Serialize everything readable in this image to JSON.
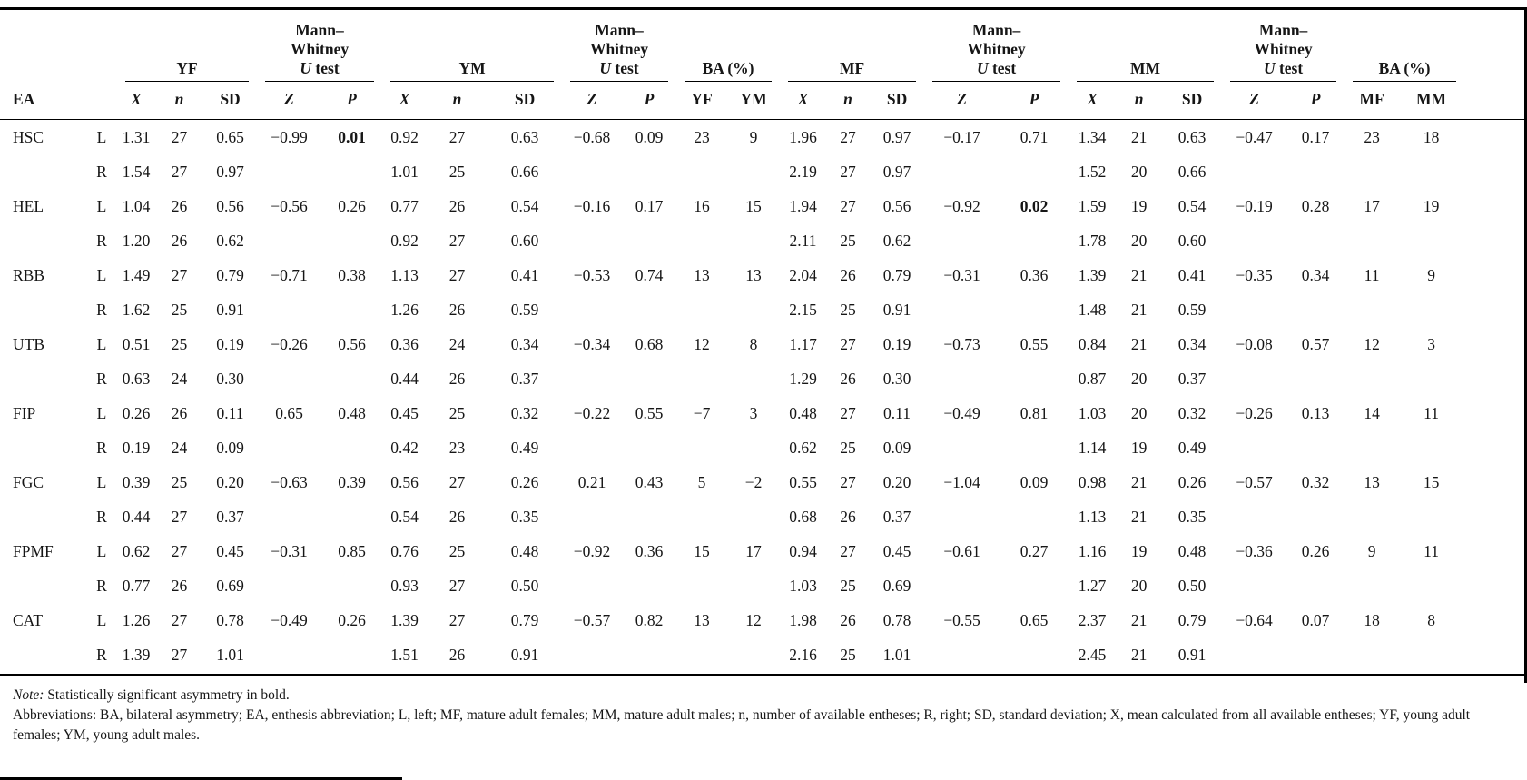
{
  "table": {
    "groups": [
      {
        "name": "spacer",
        "span": 2,
        "rule": false,
        "parts": []
      },
      {
        "name": "yf",
        "span": 3,
        "rule": true,
        "parts": [
          {
            "t": "YF"
          }
        ]
      },
      {
        "name": "mw-young",
        "span": 2,
        "rule": true,
        "parts": [
          {
            "t": "Mann–",
            "br": true
          },
          {
            "t": "Whitney",
            "br": true
          },
          {
            "t": "U",
            "i": true
          },
          {
            "t": " test"
          }
        ]
      },
      {
        "name": "ym",
        "span": 3,
        "rule": true,
        "parts": [
          {
            "t": "YM"
          }
        ]
      },
      {
        "name": "mw-young-2",
        "span": 2,
        "rule": true,
        "parts": [
          {
            "t": "Mann–",
            "br": true
          },
          {
            "t": "Whitney",
            "br": true
          },
          {
            "t": "U",
            "i": true
          },
          {
            "t": " test"
          }
        ]
      },
      {
        "name": "ba-young",
        "span": 2,
        "rule": true,
        "parts": [
          {
            "t": "BA (%)"
          }
        ]
      },
      {
        "name": "mf",
        "span": 3,
        "rule": true,
        "parts": [
          {
            "t": "MF"
          }
        ]
      },
      {
        "name": "mw-mature",
        "span": 2,
        "rule": true,
        "parts": [
          {
            "t": "Mann–",
            "br": true
          },
          {
            "t": "Whitney",
            "br": true
          },
          {
            "t": "U",
            "i": true
          },
          {
            "t": " test"
          }
        ]
      },
      {
        "name": "mm",
        "span": 3,
        "rule": true,
        "parts": [
          {
            "t": "MM"
          }
        ]
      },
      {
        "name": "mw-mature-2",
        "span": 2,
        "rule": true,
        "parts": [
          {
            "t": "Mann–",
            "br": true
          },
          {
            "t": "Whitney",
            "br": true
          },
          {
            "t": "U",
            "i": true
          },
          {
            "t": " test"
          }
        ]
      },
      {
        "name": "ba-mature",
        "span": 2,
        "rule": true,
        "parts": [
          {
            "t": "BA (%)"
          }
        ]
      }
    ],
    "subheaders": [
      {
        "t": "EA",
        "align": "left"
      },
      {
        "t": ""
      },
      {
        "t": "X",
        "i": true
      },
      {
        "t": "n",
        "i": true
      },
      {
        "t": "SD"
      },
      {
        "t": "Z",
        "i": true
      },
      {
        "t": "P",
        "i": true
      },
      {
        "t": "X",
        "i": true
      },
      {
        "t": "n",
        "i": true
      },
      {
        "t": "SD"
      },
      {
        "t": "Z",
        "i": true
      },
      {
        "t": "P",
        "i": true
      },
      {
        "t": "YF"
      },
      {
        "t": "YM"
      },
      {
        "t": "X",
        "i": true
      },
      {
        "t": "n",
        "i": true
      },
      {
        "t": "SD"
      },
      {
        "t": "Z",
        "i": true
      },
      {
        "t": "P",
        "i": true
      },
      {
        "t": "X",
        "i": true
      },
      {
        "t": "n",
        "i": true
      },
      {
        "t": "SD"
      },
      {
        "t": "Z",
        "i": true
      },
      {
        "t": "P",
        "i": true
      },
      {
        "t": "MF"
      },
      {
        "t": "MM"
      }
    ],
    "rows": [
      {
        "ea": "HSC",
        "side": "L",
        "cells": [
          "1.31",
          "27",
          "0.65",
          "−0.99",
          "0.01",
          "0.92",
          "27",
          "0.63",
          "−0.68",
          "0.09",
          "23",
          "9",
          "1.96",
          "27",
          "0.97",
          "−0.17",
          "0.71",
          "1.34",
          "21",
          "0.63",
          "−0.47",
          "0.17",
          "23",
          "18"
        ],
        "bold": [
          4
        ]
      },
      {
        "ea": "",
        "side": "R",
        "cells": [
          "1.54",
          "27",
          "0.97",
          "",
          "",
          "1.01",
          "25",
          "0.66",
          "",
          "",
          "",
          "",
          "2.19",
          "27",
          "0.97",
          "",
          "",
          "1.52",
          "20",
          "0.66",
          "",
          "",
          "",
          ""
        ],
        "bold": []
      },
      {
        "ea": "HEL",
        "side": "L",
        "cells": [
          "1.04",
          "26",
          "0.56",
          "−0.56",
          "0.26",
          "0.77",
          "26",
          "0.54",
          "−0.16",
          "0.17",
          "16",
          "15",
          "1.94",
          "27",
          "0.56",
          "−0.92",
          "0.02",
          "1.59",
          "19",
          "0.54",
          "−0.19",
          "0.28",
          "17",
          "19"
        ],
        "bold": [
          16
        ]
      },
      {
        "ea": "",
        "side": "R",
        "cells": [
          "1.20",
          "26",
          "0.62",
          "",
          "",
          "0.92",
          "27",
          "0.60",
          "",
          "",
          "",
          "",
          "2.11",
          "25",
          "0.62",
          "",
          "",
          "1.78",
          "20",
          "0.60",
          "",
          "",
          "",
          ""
        ],
        "bold": []
      },
      {
        "ea": "RBB",
        "side": "L",
        "cells": [
          "1.49",
          "27",
          "0.79",
          "−0.71",
          "0.38",
          "1.13",
          "27",
          "0.41",
          "−0.53",
          "0.74",
          "13",
          "13",
          "2.04",
          "26",
          "0.79",
          "−0.31",
          "0.36",
          "1.39",
          "21",
          "0.41",
          "−0.35",
          "0.34",
          "11",
          "9"
        ],
        "bold": []
      },
      {
        "ea": "",
        "side": "R",
        "cells": [
          "1.62",
          "25",
          "0.91",
          "",
          "",
          "1.26",
          "26",
          "0.59",
          "",
          "",
          "",
          "",
          "2.15",
          "25",
          "0.91",
          "",
          "",
          "1.48",
          "21",
          "0.59",
          "",
          "",
          "",
          ""
        ],
        "bold": []
      },
      {
        "ea": "UTB",
        "side": "L",
        "cells": [
          "0.51",
          "25",
          "0.19",
          "−0.26",
          "0.56",
          "0.36",
          "24",
          "0.34",
          "−0.34",
          "0.68",
          "12",
          "8",
          "1.17",
          "27",
          "0.19",
          "−0.73",
          "0.55",
          "0.84",
          "21",
          "0.34",
          "−0.08",
          "0.57",
          "12",
          "3"
        ],
        "bold": []
      },
      {
        "ea": "",
        "side": "R",
        "cells": [
          "0.63",
          "24",
          "0.30",
          "",
          "",
          "0.44",
          "26",
          "0.37",
          "",
          "",
          "",
          "",
          "1.29",
          "26",
          "0.30",
          "",
          "",
          "0.87",
          "20",
          "0.37",
          "",
          "",
          "",
          ""
        ],
        "bold": []
      },
      {
        "ea": "FIP",
        "side": "L",
        "cells": [
          "0.26",
          "26",
          "0.11",
          "0.65",
          "0.48",
          "0.45",
          "25",
          "0.32",
          "−0.22",
          "0.55",
          "−7",
          "3",
          "0.48",
          "27",
          "0.11",
          "−0.49",
          "0.81",
          "1.03",
          "20",
          "0.32",
          "−0.26",
          "0.13",
          "14",
          "11"
        ],
        "bold": []
      },
      {
        "ea": "",
        "side": "R",
        "cells": [
          "0.19",
          "24",
          "0.09",
          "",
          "",
          "0.42",
          "23",
          "0.49",
          "",
          "",
          "",
          "",
          "0.62",
          "25",
          "0.09",
          "",
          "",
          "1.14",
          "19",
          "0.49",
          "",
          "",
          "",
          ""
        ],
        "bold": []
      },
      {
        "ea": "FGC",
        "side": "L",
        "cells": [
          "0.39",
          "25",
          "0.20",
          "−0.63",
          "0.39",
          "0.56",
          "27",
          "0.26",
          "0.21",
          "0.43",
          "5",
          "−2",
          "0.55",
          "27",
          "0.20",
          "−1.04",
          "0.09",
          "0.98",
          "21",
          "0.26",
          "−0.57",
          "0.32",
          "13",
          "15"
        ],
        "bold": []
      },
      {
        "ea": "",
        "side": "R",
        "cells": [
          "0.44",
          "27",
          "0.37",
          "",
          "",
          "0.54",
          "26",
          "0.35",
          "",
          "",
          "",
          "",
          "0.68",
          "26",
          "0.37",
          "",
          "",
          "1.13",
          "21",
          "0.35",
          "",
          "",
          "",
          ""
        ],
        "bold": []
      },
      {
        "ea": "FPMF",
        "side": "L",
        "cells": [
          "0.62",
          "27",
          "0.45",
          "−0.31",
          "0.85",
          "0.76",
          "25",
          "0.48",
          "−0.92",
          "0.36",
          "15",
          "17",
          "0.94",
          "27",
          "0.45",
          "−0.61",
          "0.27",
          "1.16",
          "19",
          "0.48",
          "−0.36",
          "0.26",
          "9",
          "11"
        ],
        "bold": []
      },
      {
        "ea": "",
        "side": "R",
        "cells": [
          "0.77",
          "26",
          "0.69",
          "",
          "",
          "0.93",
          "27",
          "0.50",
          "",
          "",
          "",
          "",
          "1.03",
          "25",
          "0.69",
          "",
          "",
          "1.27",
          "20",
          "0.50",
          "",
          "",
          "",
          ""
        ],
        "bold": []
      },
      {
        "ea": "CAT",
        "side": "L",
        "cells": [
          "1.26",
          "27",
          "0.78",
          "−0.49",
          "0.26",
          "1.39",
          "27",
          "0.79",
          "−0.57",
          "0.82",
          "13",
          "12",
          "1.98",
          "26",
          "0.78",
          "−0.55",
          "0.65",
          "2.37",
          "21",
          "0.79",
          "−0.64",
          "0.07",
          "18",
          "8"
        ],
        "bold": []
      },
      {
        "ea": "",
        "side": "R",
        "cells": [
          "1.39",
          "27",
          "1.01",
          "",
          "",
          "1.51",
          "26",
          "0.91",
          "",
          "",
          "",
          "",
          "2.16",
          "25",
          "1.01",
          "",
          "",
          "2.45",
          "21",
          "0.91",
          "",
          "",
          "",
          ""
        ],
        "bold": []
      }
    ]
  },
  "footnotes": {
    "note_label": "Note:",
    "note_text": "Statistically significant asymmetry in bold.",
    "abbreviations": "Abbreviations: BA, bilateral asymmetry; EA, enthesis abbreviation; L, left; MF, mature adult females; MM, mature adult males; n, number of available entheses; R, right; SD, standard deviation; X, mean calculated from all available entheses; YF, young adult females; YM, young adult males."
  }
}
